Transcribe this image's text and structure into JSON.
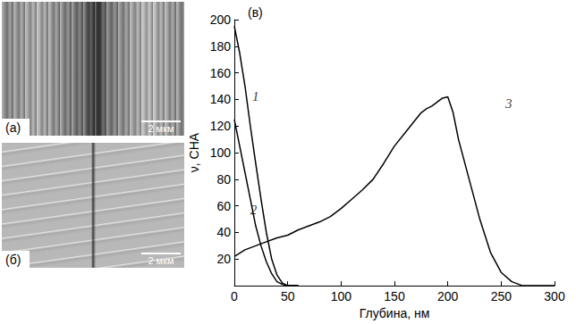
{
  "images": [
    {
      "label": "(а)",
      "scale_bar": "2 мкм"
    },
    {
      "label": "(б)",
      "scale_bar": "2 мкм"
    }
  ],
  "chart_data": {
    "type": "line",
    "title": "(в)",
    "x_label": "Глубина, нм",
    "y_label": "ν, СНА",
    "xlim": [
      0,
      300
    ],
    "xticks": [
      0,
      50,
      100,
      150,
      200,
      250,
      300
    ],
    "ylim": [
      0,
      200
    ],
    "yticks": [
      20,
      40,
      60,
      80,
      100,
      120,
      140,
      160,
      180,
      200
    ],
    "grid": false,
    "series": [
      {
        "color": "#000000",
        "x": [
          0,
          5,
          10,
          15,
          20,
          25,
          30,
          35,
          40,
          45,
          50,
          60
        ],
        "values": [
          195,
          175,
          150,
          120,
          92,
          65,
          40,
          20,
          8,
          2,
          0,
          0
        ]
      },
      {
        "color": "#000000",
        "x": [
          0,
          5,
          10,
          15,
          20,
          25,
          30,
          35,
          40,
          45,
          50,
          60
        ],
        "values": [
          125,
          105,
          85,
          65,
          45,
          30,
          18,
          9,
          3,
          1,
          0,
          0
        ]
      },
      {
        "color": "#000000",
        "x": [
          0,
          10,
          20,
          30,
          40,
          50,
          60,
          70,
          80,
          90,
          100,
          110,
          120,
          130,
          140,
          150,
          160,
          170,
          175,
          180,
          185,
          190,
          195,
          200,
          205,
          210,
          220,
          230,
          240,
          250,
          260,
          270,
          300
        ],
        "values": [
          22,
          27,
          30,
          33,
          36,
          38,
          42,
          45,
          48,
          52,
          58,
          65,
          72,
          80,
          92,
          105,
          115,
          125,
          130,
          133,
          135,
          138,
          141,
          142,
          130,
          110,
          80,
          50,
          25,
          10,
          3,
          0,
          0
        ]
      }
    ],
    "annotations": [
      {
        "text": "1",
        "x": 20,
        "y": 142
      },
      {
        "text": "2",
        "x": 18,
        "y": 57
      },
      {
        "text": "3",
        "x": 257,
        "y": 137
      }
    ]
  }
}
